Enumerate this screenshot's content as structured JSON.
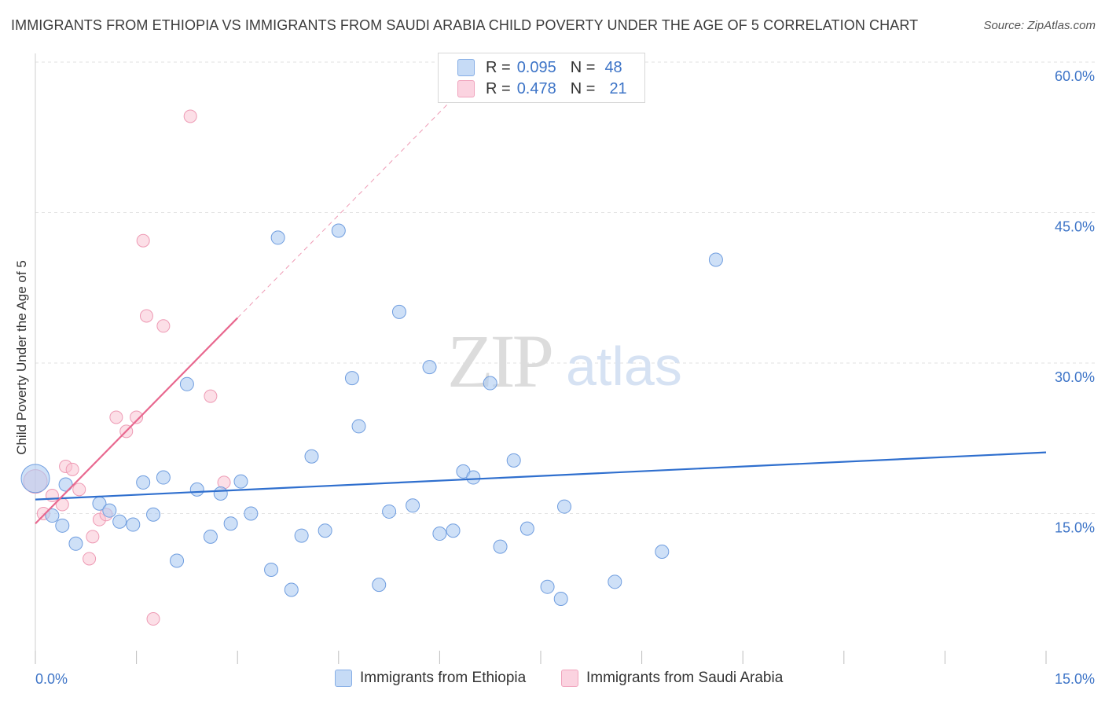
{
  "header": {
    "title": "IMMIGRANTS FROM ETHIOPIA VS IMMIGRANTS FROM SAUDI ARABIA CHILD POVERTY UNDER THE AGE OF 5 CORRELATION CHART",
    "source": "Source: ZipAtlas.com"
  },
  "watermark": {
    "zip": "ZIP",
    "atlas": "atlas"
  },
  "legend": {
    "rows": [
      {
        "r_label": "R =",
        "r_value": "0.095",
        "n_label": "N =",
        "n_value": "48"
      },
      {
        "r_label": "R =",
        "r_value": "0.478",
        "n_label": "N =",
        "n_value": "21"
      }
    ]
  },
  "colors": {
    "ethiopia_fill": "#aecbf1",
    "ethiopia_stroke": "#6f9ddf",
    "ethiopia_line": "#2f6fce",
    "saudi_fill": "#f9c4d4",
    "saudi_stroke": "#ee9ab4",
    "saudi_line": "#e8688f",
    "axis_text": "#3d74c7",
    "grid": "#e2e2e2"
  },
  "chart_data": {
    "type": "scatter",
    "title": "IMMIGRANTS FROM ETHIOPIA VS IMMIGRANTS FROM SAUDI ARABIA CHILD POVERTY UNDER THE AGE OF 5 CORRELATION CHART",
    "xlabel": "",
    "ylabel": "Child Poverty Under the Age of 5",
    "xlim": [
      0,
      15
    ],
    "ylim": [
      0,
      60
    ],
    "x_tick_labels": [
      "0.0%",
      "15.0%"
    ],
    "y_tick_values": [
      15,
      30,
      45,
      60
    ],
    "y_tick_labels": [
      "15.0%",
      "30.0%",
      "45.0%",
      "60.0%"
    ],
    "grid": "horizontal dashed",
    "legend_position": "top-center",
    "series": [
      {
        "name": "Immigrants from Ethiopia",
        "r": 0.095,
        "n": 48,
        "trend": {
          "x": [
            0,
            15
          ],
          "y": [
            16.4,
            21.1
          ]
        },
        "points": [
          [
            0.0,
            18.5
          ],
          [
            0.25,
            14.8
          ],
          [
            0.4,
            13.8
          ],
          [
            0.45,
            17.9
          ],
          [
            0.6,
            12.0
          ],
          [
            0.95,
            16.0
          ],
          [
            1.1,
            15.3
          ],
          [
            1.25,
            14.2
          ],
          [
            1.45,
            13.9
          ],
          [
            1.6,
            18.1
          ],
          [
            1.75,
            14.9
          ],
          [
            1.9,
            18.6
          ],
          [
            2.1,
            10.3
          ],
          [
            2.25,
            27.9
          ],
          [
            2.4,
            17.4
          ],
          [
            2.6,
            12.7
          ],
          [
            2.75,
            17.0
          ],
          [
            2.9,
            14.0
          ],
          [
            3.05,
            18.2
          ],
          [
            3.2,
            15.0
          ],
          [
            3.5,
            9.4
          ],
          [
            3.6,
            42.5
          ],
          [
            3.8,
            7.4
          ],
          [
            3.95,
            12.8
          ],
          [
            4.1,
            20.7
          ],
          [
            4.3,
            13.3
          ],
          [
            4.5,
            43.2
          ],
          [
            4.7,
            28.5
          ],
          [
            4.8,
            23.7
          ],
          [
            5.1,
            7.9
          ],
          [
            5.25,
            15.2
          ],
          [
            5.4,
            35.1
          ],
          [
            5.6,
            15.8
          ],
          [
            5.85,
            29.6
          ],
          [
            6.0,
            13.0
          ],
          [
            6.2,
            13.3
          ],
          [
            6.35,
            19.2
          ],
          [
            6.5,
            18.6
          ],
          [
            6.75,
            28.0
          ],
          [
            6.9,
            11.7
          ],
          [
            7.1,
            20.3
          ],
          [
            7.3,
            13.5
          ],
          [
            7.6,
            7.7
          ],
          [
            7.8,
            6.5
          ],
          [
            7.85,
            15.7
          ],
          [
            8.6,
            8.2
          ],
          [
            9.3,
            11.2
          ],
          [
            10.1,
            40.3
          ]
        ]
      },
      {
        "name": "Immigrants from Saudi Arabia",
        "r": 0.478,
        "n": 21,
        "trend": {
          "x": [
            0,
            3.0
          ],
          "y": [
            14.0,
            34.5
          ]
        },
        "points": [
          [
            0.0,
            18.2
          ],
          [
            0.12,
            15.0
          ],
          [
            0.25,
            16.8
          ],
          [
            0.4,
            15.9
          ],
          [
            0.45,
            19.7
          ],
          [
            0.55,
            19.4
          ],
          [
            0.65,
            17.4
          ],
          [
            0.8,
            10.5
          ],
          [
            0.85,
            12.7
          ],
          [
            0.95,
            14.4
          ],
          [
            1.05,
            14.9
          ],
          [
            1.2,
            24.6
          ],
          [
            1.35,
            23.2
          ],
          [
            1.5,
            24.6
          ],
          [
            1.6,
            42.2
          ],
          [
            1.65,
            34.7
          ],
          [
            1.75,
            4.5
          ],
          [
            1.9,
            33.7
          ],
          [
            2.3,
            54.6
          ],
          [
            2.6,
            26.7
          ],
          [
            2.8,
            18.1
          ]
        ]
      }
    ]
  },
  "bottom_legend": {
    "items": [
      {
        "label": "Immigrants from Ethiopia"
      },
      {
        "label": "Immigrants from Saudi Arabia"
      }
    ]
  }
}
